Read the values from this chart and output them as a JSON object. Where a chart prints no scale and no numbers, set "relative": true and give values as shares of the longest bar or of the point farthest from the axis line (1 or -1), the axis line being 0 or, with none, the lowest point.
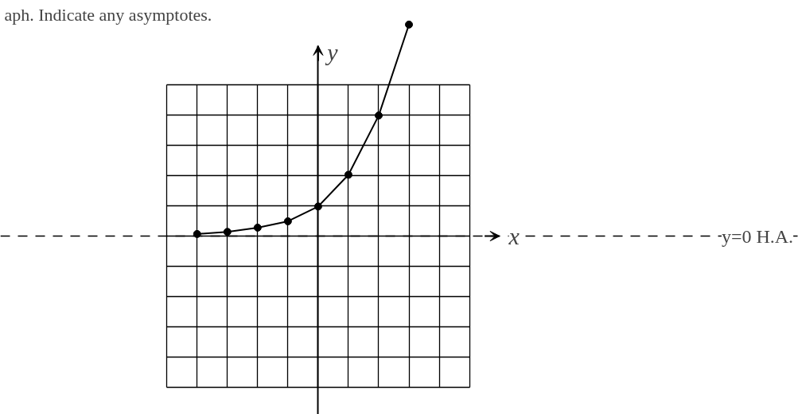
{
  "chart_data": {
    "type": "line",
    "xlabel": "x",
    "ylabel": "y",
    "relative": true,
    "annotations": [
      "aph. Indicate any asymptotes."
    ],
    "categories": [
      null,
      null,
      null,
      null,
      null,
      null,
      null,
      null
    ],
    "grid": true,
    "marker": "circle",
    "series": [
      {
        "color": "#000000",
        "values": [
          0.01,
          0.02,
          0.04,
          0.07,
          0.14,
          0.29,
          0.57,
          1
        ]
      }
    ],
    "ref_lines": [
      {
        "axis": "y",
        "value": 0,
        "label": "y=0 H.A.",
        "line_style": "dashed",
        "color": "#000000"
      }
    ]
  }
}
